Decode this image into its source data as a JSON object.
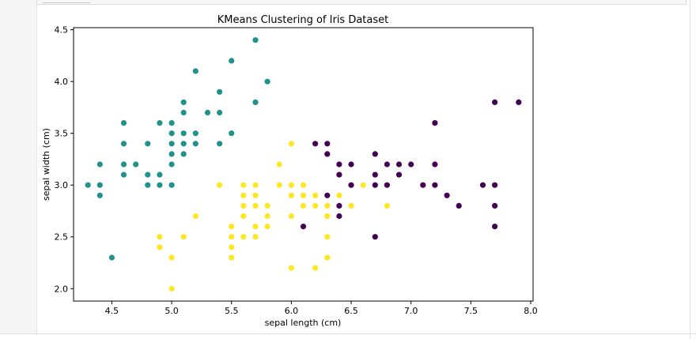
{
  "chart_data": {
    "type": "scatter",
    "title": "KMeans Clustering of Iris Dataset",
    "xlabel": "sepal length (cm)",
    "ylabel": "sepal width (cm)",
    "xlim": [
      4.18,
      8.02
    ],
    "ylim": [
      1.88,
      4.52
    ],
    "xticks": [
      4.5,
      5.0,
      5.5,
      6.0,
      6.5,
      7.0,
      7.5,
      8.0
    ],
    "xtick_labels": [
      "4.5",
      "5.0",
      "5.5",
      "6.0",
      "6.5",
      "7.0",
      "7.5",
      "8.0"
    ],
    "yticks": [
      2.0,
      2.5,
      3.0,
      3.5,
      4.0,
      4.5
    ],
    "ytick_labels": [
      "2.0",
      "2.5",
      "3.0",
      "3.5",
      "4.0",
      "4.5"
    ],
    "grid": false,
    "legend": "none",
    "series": [
      {
        "color": "#21918c",
        "points": [
          [
            4.3,
            3.0
          ],
          [
            4.4,
            2.9
          ],
          [
            4.4,
            3.0
          ],
          [
            4.4,
            3.2
          ],
          [
            4.5,
            2.3
          ],
          [
            4.6,
            3.1
          ],
          [
            4.6,
            3.2
          ],
          [
            4.6,
            3.4
          ],
          [
            4.6,
            3.6
          ],
          [
            4.7,
            3.2
          ],
          [
            4.8,
            3.0
          ],
          [
            4.8,
            3.1
          ],
          [
            4.8,
            3.4
          ],
          [
            4.9,
            3.0
          ],
          [
            4.9,
            3.1
          ],
          [
            4.9,
            3.6
          ],
          [
            5.0,
            3.0
          ],
          [
            5.0,
            3.2
          ],
          [
            5.0,
            3.3
          ],
          [
            5.0,
            3.4
          ],
          [
            5.0,
            3.5
          ],
          [
            5.0,
            3.6
          ],
          [
            5.1,
            3.3
          ],
          [
            5.1,
            3.4
          ],
          [
            5.1,
            3.5
          ],
          [
            5.1,
            3.7
          ],
          [
            5.1,
            3.8
          ],
          [
            5.2,
            3.4
          ],
          [
            5.2,
            3.5
          ],
          [
            5.2,
            4.1
          ],
          [
            5.3,
            3.7
          ],
          [
            5.4,
            3.4
          ],
          [
            5.4,
            3.7
          ],
          [
            5.4,
            3.9
          ],
          [
            5.5,
            3.5
          ],
          [
            5.5,
            4.2
          ],
          [
            5.7,
            3.8
          ],
          [
            5.7,
            4.4
          ],
          [
            5.8,
            4.0
          ]
        ]
      },
      {
        "color": "#fde725",
        "points": [
          [
            4.9,
            2.4
          ],
          [
            4.9,
            2.5
          ],
          [
            5.0,
            2.0
          ],
          [
            5.0,
            2.3
          ],
          [
            5.1,
            2.5
          ],
          [
            5.2,
            2.7
          ],
          [
            5.4,
            3.0
          ],
          [
            5.5,
            2.3
          ],
          [
            5.5,
            2.4
          ],
          [
            5.5,
            2.5
          ],
          [
            5.5,
            2.6
          ],
          [
            5.6,
            2.5
          ],
          [
            5.6,
            2.7
          ],
          [
            5.6,
            2.8
          ],
          [
            5.6,
            2.9
          ],
          [
            5.6,
            3.0
          ],
          [
            5.7,
            2.5
          ],
          [
            5.7,
            2.6
          ],
          [
            5.7,
            2.8
          ],
          [
            5.7,
            2.9
          ],
          [
            5.7,
            3.0
          ],
          [
            5.8,
            2.6
          ],
          [
            5.8,
            2.7
          ],
          [
            5.8,
            2.8
          ],
          [
            5.9,
            3.0
          ],
          [
            5.9,
            3.2
          ],
          [
            6.0,
            2.2
          ],
          [
            6.0,
            2.7
          ],
          [
            6.0,
            2.9
          ],
          [
            6.0,
            3.0
          ],
          [
            6.0,
            3.4
          ],
          [
            6.1,
            2.8
          ],
          [
            6.1,
            2.9
          ],
          [
            6.1,
            3.0
          ],
          [
            6.2,
            2.2
          ],
          [
            6.2,
            2.8
          ],
          [
            6.2,
            2.9
          ],
          [
            6.3,
            2.3
          ],
          [
            6.3,
            2.5
          ],
          [
            6.3,
            2.7
          ],
          [
            6.3,
            2.8
          ],
          [
            6.4,
            2.9
          ],
          [
            6.5,
            2.8
          ],
          [
            6.6,
            3.0
          ],
          [
            6.8,
            2.8
          ]
        ]
      },
      {
        "color": "#440154",
        "points": [
          [
            6.1,
            2.6
          ],
          [
            6.2,
            3.4
          ],
          [
            6.3,
            2.9
          ],
          [
            6.3,
            3.3
          ],
          [
            6.3,
            3.4
          ],
          [
            6.4,
            2.7
          ],
          [
            6.4,
            2.8
          ],
          [
            6.4,
            3.1
          ],
          [
            6.4,
            3.2
          ],
          [
            6.5,
            3.0
          ],
          [
            6.5,
            3.2
          ],
          [
            6.7,
            2.5
          ],
          [
            6.7,
            3.0
          ],
          [
            6.7,
            3.1
          ],
          [
            6.7,
            3.3
          ],
          [
            6.8,
            3.0
          ],
          [
            6.8,
            3.2
          ],
          [
            6.9,
            3.1
          ],
          [
            6.9,
            3.2
          ],
          [
            7.0,
            3.2
          ],
          [
            7.1,
            3.0
          ],
          [
            7.2,
            3.0
          ],
          [
            7.2,
            3.2
          ],
          [
            7.2,
            3.6
          ],
          [
            7.3,
            2.9
          ],
          [
            7.4,
            2.8
          ],
          [
            7.6,
            3.0
          ],
          [
            7.7,
            2.6
          ],
          [
            7.7,
            2.8
          ],
          [
            7.7,
            3.0
          ],
          [
            7.7,
            3.8
          ],
          [
            7.9,
            3.8
          ]
        ]
      }
    ]
  }
}
